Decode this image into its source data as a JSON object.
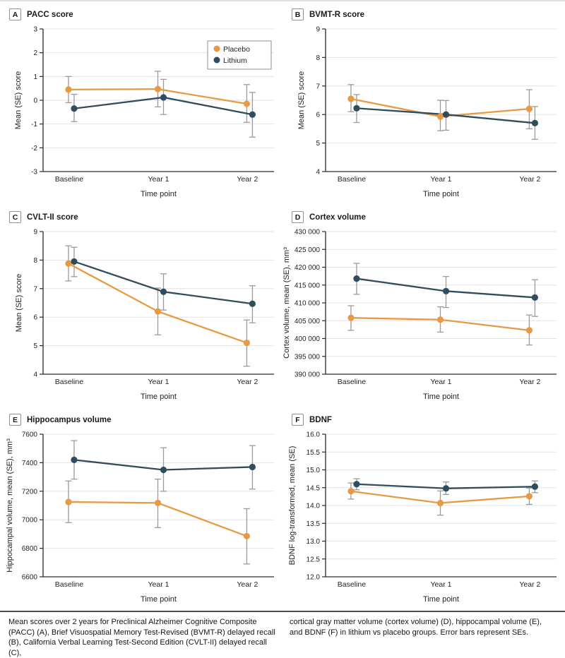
{
  "colors": {
    "placebo": "#E79A43",
    "lithium": "#2F4D5C",
    "error_bar": "#9B9B9B",
    "gridline": "#E3E3E3",
    "axis": "#2A2A2A",
    "text": "#1F1F1F"
  },
  "caption": {
    "left": "Mean scores over 2 years for Preclinical Alzheimer Cognitive Composite (PACC) (A), Brief Visuospatial Memory Test-Revised (BVMT-R) delayed recall (B), California Verbal Learning Test-Second Edition (CVLT-II) delayed recall (C),",
    "right": "cortical gray matter volume (cortex volume) (D), hippocampal volume (E), and BDNF (F) in lithium vs placebo groups. Error bars represent SEs."
  },
  "chart_data": [
    {
      "type": "line",
      "panel": "A",
      "title": "PACC score",
      "xlabel": "Time point",
      "ylabel": "Mean (SE) score",
      "categories": [
        "Baseline",
        "Year 1",
        "Year 2"
      ],
      "ylim": [
        -3,
        3
      ],
      "yticks": [
        3,
        2,
        1,
        0,
        -1,
        -2,
        -3
      ],
      "ytick_labels": [
        "3",
        "2",
        "1",
        "0",
        "-1",
        "-2",
        "-3"
      ],
      "grid": true,
      "legend": true,
      "legend_position": "top-right",
      "series": [
        {
          "name": "Placebo",
          "color": "#E79A43",
          "values": [
            0.45,
            0.47,
            -0.15
          ],
          "err_lo": [
            -0.1,
            -0.28,
            -0.93
          ],
          "err_hi": [
            1.0,
            1.22,
            0.66
          ]
        },
        {
          "name": "Lithium",
          "color": "#2F4D5C",
          "values": [
            -0.35,
            0.12,
            -0.6
          ],
          "err_lo": [
            -0.9,
            -0.6,
            -1.55
          ],
          "err_hi": [
            0.25,
            0.88,
            0.33
          ]
        }
      ]
    },
    {
      "type": "line",
      "panel": "B",
      "title": "BVMT-R score",
      "xlabel": "Time point",
      "ylabel": "Mean (SE) score",
      "categories": [
        "Baseline",
        "Year 1",
        "Year 2"
      ],
      "ylim": [
        4,
        9
      ],
      "yticks": [
        9,
        8,
        7,
        6,
        5,
        4
      ],
      "ytick_labels": [
        "9",
        "8",
        "7",
        "6",
        "5",
        "4"
      ],
      "grid": true,
      "legend": false,
      "series": [
        {
          "name": "Placebo",
          "color": "#E79A43",
          "values": [
            6.55,
            5.93,
            6.2
          ],
          "err_lo": [
            6.1,
            5.43,
            5.5
          ],
          "err_hi": [
            7.05,
            6.5,
            6.87
          ]
        },
        {
          "name": "Lithium",
          "color": "#2F4D5C",
          "values": [
            6.22,
            6.0,
            5.7
          ],
          "err_lo": [
            5.72,
            5.45,
            5.13
          ],
          "err_hi": [
            6.7,
            6.49,
            6.28
          ]
        }
      ]
    },
    {
      "type": "line",
      "panel": "C",
      "title": "CVLT-II score",
      "xlabel": "Time point",
      "ylabel": "Mean (SE) score",
      "categories": [
        "Baseline",
        "Year 1",
        "Year 2"
      ],
      "ylim": [
        4,
        9
      ],
      "yticks": [
        9,
        8,
        7,
        6,
        5,
        4
      ],
      "ytick_labels": [
        "9",
        "8",
        "7",
        "6",
        "5",
        "4"
      ],
      "grid": true,
      "legend": false,
      "series": [
        {
          "name": "Placebo",
          "color": "#E79A43",
          "values": [
            7.88,
            6.2,
            5.1
          ],
          "err_lo": [
            7.27,
            5.38,
            4.28
          ],
          "err_hi": [
            8.5,
            7.02,
            5.9
          ]
        },
        {
          "name": "Lithium",
          "color": "#2F4D5C",
          "values": [
            7.95,
            6.89,
            6.47
          ],
          "err_lo": [
            7.42,
            6.25,
            5.8
          ],
          "err_hi": [
            8.45,
            7.52,
            7.1
          ]
        }
      ]
    },
    {
      "type": "line",
      "panel": "D",
      "title": "Cortex volume",
      "xlabel": "Time point",
      "ylabel": "Cortex volume, mean (SE), mm³",
      "categories": [
        "Baseline",
        "Year 1",
        "Year 2"
      ],
      "ylim": [
        390000,
        430000
      ],
      "yticks": [
        430000,
        425000,
        420000,
        415000,
        410000,
        405000,
        400000,
        395000,
        390000
      ],
      "ytick_labels": [
        "430 000",
        "425 000",
        "420 000",
        "415 000",
        "410 000",
        "405 000",
        "400 000",
        "395 000",
        "390 000"
      ],
      "grid": true,
      "legend": false,
      "series": [
        {
          "name": "Placebo",
          "color": "#E79A43",
          "values": [
            405800,
            405300,
            402300
          ],
          "err_lo": [
            402300,
            401800,
            398200
          ],
          "err_hi": [
            409200,
            408900,
            406600
          ]
        },
        {
          "name": "Lithium",
          "color": "#2F4D5C",
          "values": [
            416800,
            413300,
            411500
          ],
          "err_lo": [
            412400,
            408700,
            406200
          ],
          "err_hi": [
            421100,
            417400,
            416500
          ]
        }
      ]
    },
    {
      "type": "line",
      "panel": "E",
      "title": "Hippocampus volume",
      "xlabel": "Time point",
      "ylabel": "Hippocampal volume, mean (SE), mm³",
      "categories": [
        "Baseline",
        "Year 1",
        "Year 2"
      ],
      "ylim": [
        6600,
        7600
      ],
      "yticks": [
        7600,
        7400,
        7200,
        7000,
        6800,
        6600
      ],
      "ytick_labels": [
        "7600",
        "7400",
        "7200",
        "7000",
        "6800",
        "6600"
      ],
      "grid": true,
      "legend": false,
      "series": [
        {
          "name": "Placebo",
          "color": "#E79A43",
          "values": [
            7125,
            7118,
            6885
          ],
          "err_lo": [
            6980,
            6945,
            6690
          ],
          "err_hi": [
            7272,
            7285,
            7078
          ]
        },
        {
          "name": "Lithium",
          "color": "#2F4D5C",
          "values": [
            7420,
            7350,
            7370
          ],
          "err_lo": [
            7285,
            7200,
            7215
          ],
          "err_hi": [
            7555,
            7505,
            7520
          ]
        }
      ]
    },
    {
      "type": "line",
      "panel": "F",
      "title": "BDNF",
      "xlabel": "Time point",
      "ylabel": "BDNF log-transformed, mean (SE)",
      "categories": [
        "Baseline",
        "Year 1",
        "Year 2"
      ],
      "ylim": [
        12,
        16
      ],
      "yticks": [
        16,
        15.5,
        15,
        14.5,
        14,
        13.5,
        13,
        12.5,
        12
      ],
      "ytick_labels": [
        "16.0",
        "15.5",
        "15.0",
        "14.5",
        "14.0",
        "13.5",
        "13.0",
        "12.5",
        "12.0"
      ],
      "grid": true,
      "legend": false,
      "series": [
        {
          "name": "Placebo",
          "color": "#E79A43",
          "values": [
            14.4,
            14.07,
            14.26
          ],
          "err_lo": [
            14.18,
            13.73,
            14.03
          ],
          "err_hi": [
            14.63,
            14.41,
            14.49
          ]
        },
        {
          "name": "Lithium",
          "color": "#2F4D5C",
          "values": [
            14.6,
            14.48,
            14.53
          ],
          "err_lo": [
            14.44,
            14.31,
            14.36
          ],
          "err_hi": [
            14.75,
            14.66,
            14.69
          ]
        }
      ]
    }
  ]
}
